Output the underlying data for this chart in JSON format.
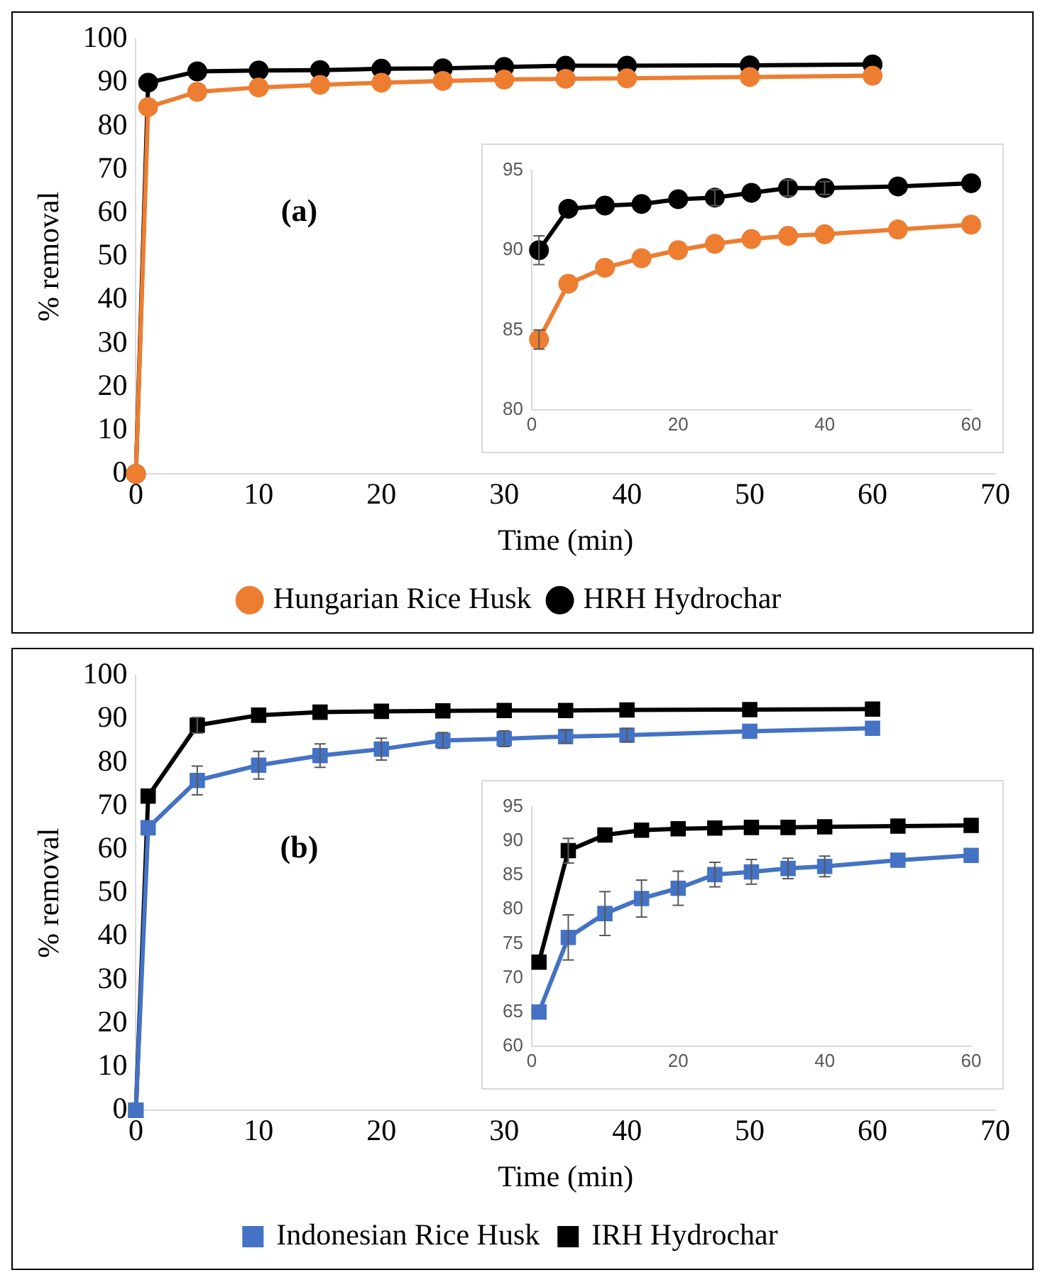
{
  "chart_data": [
    {
      "type": "line",
      "xlabel": "Time (min)",
      "ylabel": "% removal",
      "annotations": [
        "(a)"
      ],
      "x": [
        0,
        1,
        5,
        10,
        15,
        20,
        25,
        30,
        35,
        40,
        50,
        60
      ],
      "xlim": [
        0,
        70
      ],
      "xticks": [
        0,
        10,
        20,
        30,
        40,
        50,
        60,
        70
      ],
      "ylim": [
        0,
        100
      ],
      "yticks": [
        0,
        10,
        20,
        30,
        40,
        50,
        60,
        70,
        80,
        90,
        100
      ],
      "grid": false,
      "legend": "bottom",
      "marker": "circle",
      "series": [
        {
          "name": "Hungarian Rice Husk",
          "color": "#ed7d31",
          "values": [
            0,
            84.4,
            87.9,
            88.9,
            89.5,
            90.0,
            90.4,
            90.7,
            90.9,
            91.0,
            91.3,
            91.6
          ]
        },
        {
          "name": "HRH Hydrochar",
          "color": "#000000",
          "values": [
            0,
            90.0,
            92.6,
            92.8,
            92.9,
            93.2,
            93.3,
            93.6,
            93.9,
            93.9,
            94.0,
            94.2
          ]
        }
      ]
    },
    {
      "type": "line",
      "x": [
        1,
        5,
        10,
        15,
        20,
        25,
        30,
        35,
        40,
        50,
        60
      ],
      "xlim": [
        0,
        60
      ],
      "xticks": [
        0,
        20,
        40,
        60
      ],
      "ylim": [
        80,
        95
      ],
      "yticks": [
        80,
        85,
        90,
        95
      ],
      "grid": false,
      "legend": false,
      "marker": "circle",
      "series": [
        {
          "color": "#ed7d31",
          "values": [
            84.4,
            87.9,
            88.9,
            89.5,
            90.0,
            90.4,
            90.7,
            90.9,
            91.0,
            91.3,
            91.6
          ],
          "errors": [
            0.6,
            null,
            null,
            null,
            null,
            null,
            null,
            null,
            null,
            null,
            null
          ]
        },
        {
          "color": "#000000",
          "values": [
            90.0,
            92.6,
            92.8,
            92.9,
            93.2,
            93.3,
            93.6,
            93.9,
            93.9,
            94.0,
            94.2
          ],
          "errors": [
            0.9,
            null,
            null,
            null,
            null,
            0.5,
            null,
            0.5,
            0.4,
            null,
            null
          ]
        }
      ]
    },
    {
      "type": "line",
      "xlabel": "Time (min)",
      "ylabel": "% removal",
      "annotations": [
        "(b)"
      ],
      "x": [
        0,
        1,
        5,
        10,
        15,
        20,
        25,
        30,
        35,
        40,
        50,
        60
      ],
      "xlim": [
        0,
        70
      ],
      "xticks": [
        0,
        10,
        20,
        30,
        40,
        50,
        60,
        70
      ],
      "ylim": [
        0,
        100
      ],
      "yticks": [
        0,
        10,
        20,
        30,
        40,
        50,
        60,
        70,
        80,
        90,
        100
      ],
      "grid": false,
      "legend": "bottom",
      "marker": "square",
      "series": [
        {
          "name": "Indonesian Rice Husk",
          "color": "#4472c4",
          "values": [
            0,
            65.0,
            75.9,
            79.4,
            81.6,
            83.1,
            85.1,
            85.5,
            86.0,
            86.3,
            87.2,
            87.9
          ],
          "errors": [
            null,
            null,
            3.3,
            3.2,
            2.7,
            2.5,
            1.8,
            1.8,
            1.5,
            1.5,
            null,
            null
          ]
        },
        {
          "name": "IRH Hydrochar",
          "color": "#000000",
          "values": [
            0,
            72.3,
            88.6,
            90.9,
            91.6,
            91.8,
            91.9,
            92.0,
            92.0,
            92.1,
            92.2,
            92.3
          ],
          "errors": [
            null,
            null,
            1.8,
            null,
            null,
            null,
            null,
            null,
            null,
            null,
            null,
            null
          ]
        }
      ]
    },
    {
      "type": "line",
      "x": [
        1,
        5,
        10,
        15,
        20,
        25,
        30,
        35,
        40,
        50,
        60
      ],
      "xlim": [
        0,
        60
      ],
      "xticks": [
        0,
        20,
        40,
        60
      ],
      "ylim": [
        60,
        95
      ],
      "yticks": [
        60,
        65,
        70,
        75,
        80,
        85,
        90,
        95
      ],
      "grid": false,
      "legend": false,
      "marker": "square",
      "series": [
        {
          "color": "#4472c4",
          "values": [
            65.0,
            75.9,
            79.4,
            81.6,
            83.1,
            85.1,
            85.5,
            86.0,
            86.3,
            87.2,
            87.9
          ],
          "errors": [
            null,
            3.3,
            3.2,
            2.7,
            2.5,
            1.8,
            1.8,
            1.5,
            1.5,
            null,
            null
          ]
        },
        {
          "color": "#000000",
          "values": [
            72.3,
            88.6,
            90.9,
            91.6,
            91.8,
            91.9,
            92.0,
            92.0,
            92.1,
            92.2,
            92.3
          ],
          "errors": [
            null,
            1.8,
            null,
            null,
            null,
            null,
            null,
            null,
            null,
            null,
            null
          ]
        }
      ]
    }
  ]
}
